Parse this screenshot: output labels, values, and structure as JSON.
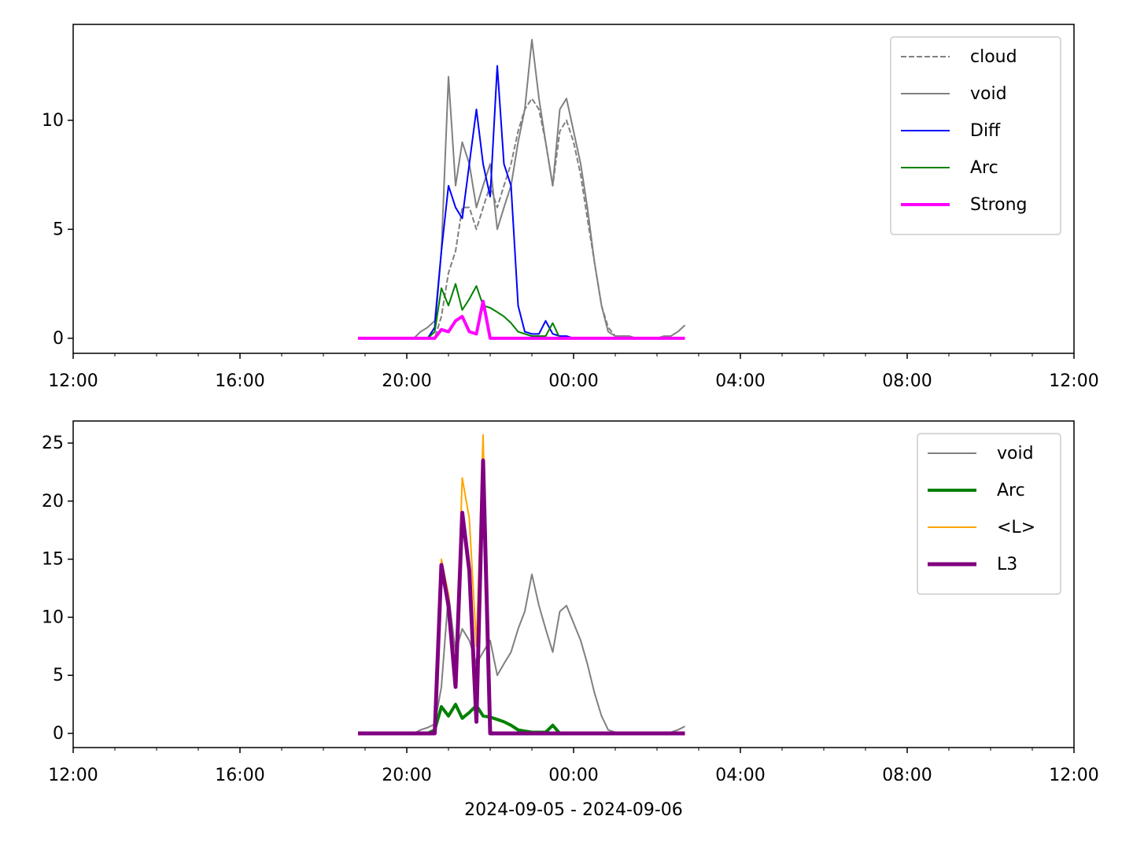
{
  "chart_data": [
    {
      "type": "line",
      "legend": "upper right",
      "xlim": [
        12,
        36
      ],
      "xticks": [
        {
          "value": 12,
          "label": "12:00"
        },
        {
          "value": 16,
          "label": "16:00"
        },
        {
          "value": 20,
          "label": "20:00"
        },
        {
          "value": 24,
          "label": "00:00"
        },
        {
          "value": 28,
          "label": "04:00"
        },
        {
          "value": 32,
          "label": "08:00"
        },
        {
          "value": 36,
          "label": "12:00"
        }
      ],
      "ylim": [
        -0.69,
        14.4
      ],
      "yticks": [
        0,
        5,
        10
      ],
      "x": [
        18.83,
        19.0,
        19.17,
        19.33,
        19.5,
        19.67,
        19.83,
        20.0,
        20.17,
        20.33,
        20.5,
        20.67,
        20.83,
        21.0,
        21.17,
        21.33,
        21.5,
        21.67,
        21.83,
        22.0,
        22.17,
        22.33,
        22.5,
        22.67,
        22.83,
        23.0,
        23.17,
        23.33,
        23.5,
        23.67,
        23.83,
        24.0,
        24.17,
        24.33,
        24.5,
        24.67,
        24.83,
        25.0,
        25.17,
        25.33,
        25.5,
        25.67,
        25.83,
        26.0,
        26.17,
        26.33,
        26.5,
        26.67
      ],
      "series": [
        {
          "name": "cloud",
          "color": "#808080",
          "linestyle": "dashed",
          "linewidth": 2,
          "values": [
            0,
            0,
            0,
            0,
            0,
            0,
            0,
            0,
            0,
            0,
            0,
            0,
            1,
            3,
            4,
            6,
            6,
            5,
            6,
            7,
            6,
            7,
            8,
            9.5,
            10.5,
            11,
            10.5,
            9,
            7,
            9.5,
            10,
            9,
            7.5,
            5.5,
            3.5,
            1.5,
            0.5,
            0.1,
            0.1,
            0.1,
            0,
            0,
            0,
            0,
            0,
            0,
            0,
            0
          ]
        },
        {
          "name": "void",
          "color": "#808080",
          "linestyle": "solid",
          "linewidth": 2,
          "values": [
            0,
            0,
            0,
            0,
            0,
            0,
            0,
            0,
            0,
            0.3,
            0.5,
            0.8,
            4,
            12,
            7,
            9,
            8,
            6,
            7,
            8,
            5,
            6,
            7,
            9,
            10.5,
            13.7,
            11,
            9,
            7,
            10.5,
            11,
            9.5,
            8,
            6,
            3.5,
            1.5,
            0.3,
            0.1,
            0.1,
            0.1,
            0,
            0,
            0,
            0,
            0.1,
            0.1,
            0.3,
            0.6
          ]
        },
        {
          "name": "Diff",
          "color": "#0000ff",
          "linestyle": "solid",
          "linewidth": 2,
          "values": [
            0,
            0,
            0,
            0,
            0,
            0,
            0,
            0,
            0,
            0,
            0,
            0.5,
            4,
            7,
            6,
            5.5,
            8,
            10.5,
            8,
            6.5,
            12.5,
            8,
            7,
            1.5,
            0.3,
            0.2,
            0.2,
            0.8,
            0.2,
            0.1,
            0.1,
            0,
            0,
            0,
            0,
            0,
            0,
            0,
            0,
            0,
            0,
            0,
            0,
            0,
            0,
            0,
            0,
            0
          ]
        },
        {
          "name": "Arc",
          "color": "#008000",
          "linestyle": "solid",
          "linewidth": 2,
          "values": [
            0,
            0,
            0,
            0,
            0,
            0,
            0,
            0,
            0,
            0,
            0,
            0.3,
            2.3,
            1.5,
            2.5,
            1.3,
            1.8,
            2.4,
            1.5,
            1.4,
            1.2,
            1,
            0.7,
            0.3,
            0.2,
            0.1,
            0.1,
            0.1,
            0.7,
            0,
            0,
            0,
            0,
            0,
            0,
            0,
            0,
            0,
            0,
            0,
            0,
            0,
            0,
            0,
            0,
            0,
            0,
            0
          ]
        },
        {
          "name": "Strong",
          "color": "#ff00ff",
          "linestyle": "solid",
          "linewidth": 4,
          "values": [
            0,
            0,
            0,
            0,
            0,
            0,
            0,
            0,
            0,
            0,
            0,
            0,
            0.4,
            0.3,
            0.8,
            1,
            0.3,
            0.2,
            1.7,
            0,
            0,
            0,
            0,
            0,
            0,
            0,
            0,
            0,
            0,
            0,
            0,
            0,
            0,
            0,
            0,
            0,
            0,
            0,
            0,
            0,
            0,
            0,
            0,
            0,
            0,
            0,
            0,
            0
          ]
        }
      ]
    },
    {
      "type": "line",
      "legend": "upper right",
      "xlabel": "2024-09-05 - 2024-09-06",
      "xlim": [
        12,
        36
      ],
      "xticks": [
        {
          "value": 12,
          "label": "12:00"
        },
        {
          "value": 16,
          "label": "16:00"
        },
        {
          "value": 20,
          "label": "20:00"
        },
        {
          "value": 24,
          "label": "00:00"
        },
        {
          "value": 28,
          "label": "04:00"
        },
        {
          "value": 32,
          "label": "08:00"
        },
        {
          "value": 36,
          "label": "12:00"
        }
      ],
      "ylim": [
        -1.22,
        26.9
      ],
      "yticks": [
        0,
        5,
        10,
        15,
        20,
        25
      ],
      "x": [
        18.83,
        19.0,
        19.17,
        19.33,
        19.5,
        19.67,
        19.83,
        20.0,
        20.17,
        20.33,
        20.5,
        20.67,
        20.83,
        21.0,
        21.17,
        21.33,
        21.5,
        21.67,
        21.83,
        22.0,
        22.17,
        22.33,
        22.5,
        22.67,
        22.83,
        23.0,
        23.17,
        23.33,
        23.5,
        23.67,
        23.83,
        24.0,
        24.17,
        24.33,
        24.5,
        24.67,
        24.83,
        25.0,
        25.17,
        25.33,
        25.5,
        25.67,
        25.83,
        26.0,
        26.17,
        26.33,
        26.5,
        26.67
      ],
      "series": [
        {
          "name": "void",
          "color": "#808080",
          "linestyle": "solid",
          "linewidth": 2,
          "values": [
            0,
            0,
            0,
            0,
            0,
            0,
            0,
            0,
            0,
            0.3,
            0.5,
            0.8,
            4,
            12,
            7,
            9,
            8,
            6,
            7,
            8,
            5,
            6,
            7,
            9,
            10.5,
            13.7,
            11,
            9,
            7,
            10.5,
            11,
            9.5,
            8,
            6,
            3.5,
            1.5,
            0.3,
            0.1,
            0.1,
            0.1,
            0,
            0,
            0,
            0,
            0.1,
            0.1,
            0.3,
            0.6
          ]
        },
        {
          "name": "Arc",
          "color": "#008000",
          "linestyle": "solid",
          "linewidth": 4,
          "values": [
            0,
            0,
            0,
            0,
            0,
            0,
            0,
            0,
            0,
            0,
            0,
            0.3,
            2.3,
            1.5,
            2.5,
            1.3,
            1.8,
            2.4,
            1.5,
            1.4,
            1.2,
            1,
            0.7,
            0.3,
            0.2,
            0.1,
            0.1,
            0.1,
            0.7,
            0,
            0,
            0,
            0,
            0,
            0,
            0,
            0,
            0,
            0,
            0,
            0,
            0,
            0,
            0,
            0,
            0,
            0,
            0
          ]
        },
        {
          "name": "<L>",
          "color": "#ffa500",
          "linestyle": "solid",
          "linewidth": 2,
          "values": [
            0,
            0,
            0,
            0,
            0,
            0,
            0,
            0,
            0,
            0,
            0,
            0,
            15,
            12,
            5,
            22,
            18.5,
            7.5,
            25.7,
            0,
            0,
            0,
            0,
            0,
            0,
            0,
            0,
            0,
            0,
            0,
            0,
            0,
            0,
            0,
            0,
            0,
            0,
            0,
            0,
            0,
            0,
            0,
            0,
            0,
            0,
            0,
            0,
            0
          ]
        },
        {
          "name": "L3",
          "color": "#800080",
          "linestyle": "solid",
          "linewidth": 5,
          "values": [
            0,
            0,
            0,
            0,
            0,
            0,
            0,
            0,
            0,
            0,
            0,
            0,
            14.5,
            11,
            4,
            19,
            14,
            1,
            23.5,
            0,
            0,
            0,
            0,
            0,
            0,
            0,
            0,
            0,
            0,
            0,
            0,
            0,
            0,
            0,
            0,
            0,
            0,
            0,
            0,
            0,
            0,
            0,
            0,
            0,
            0,
            0,
            0,
            0
          ]
        }
      ]
    }
  ]
}
